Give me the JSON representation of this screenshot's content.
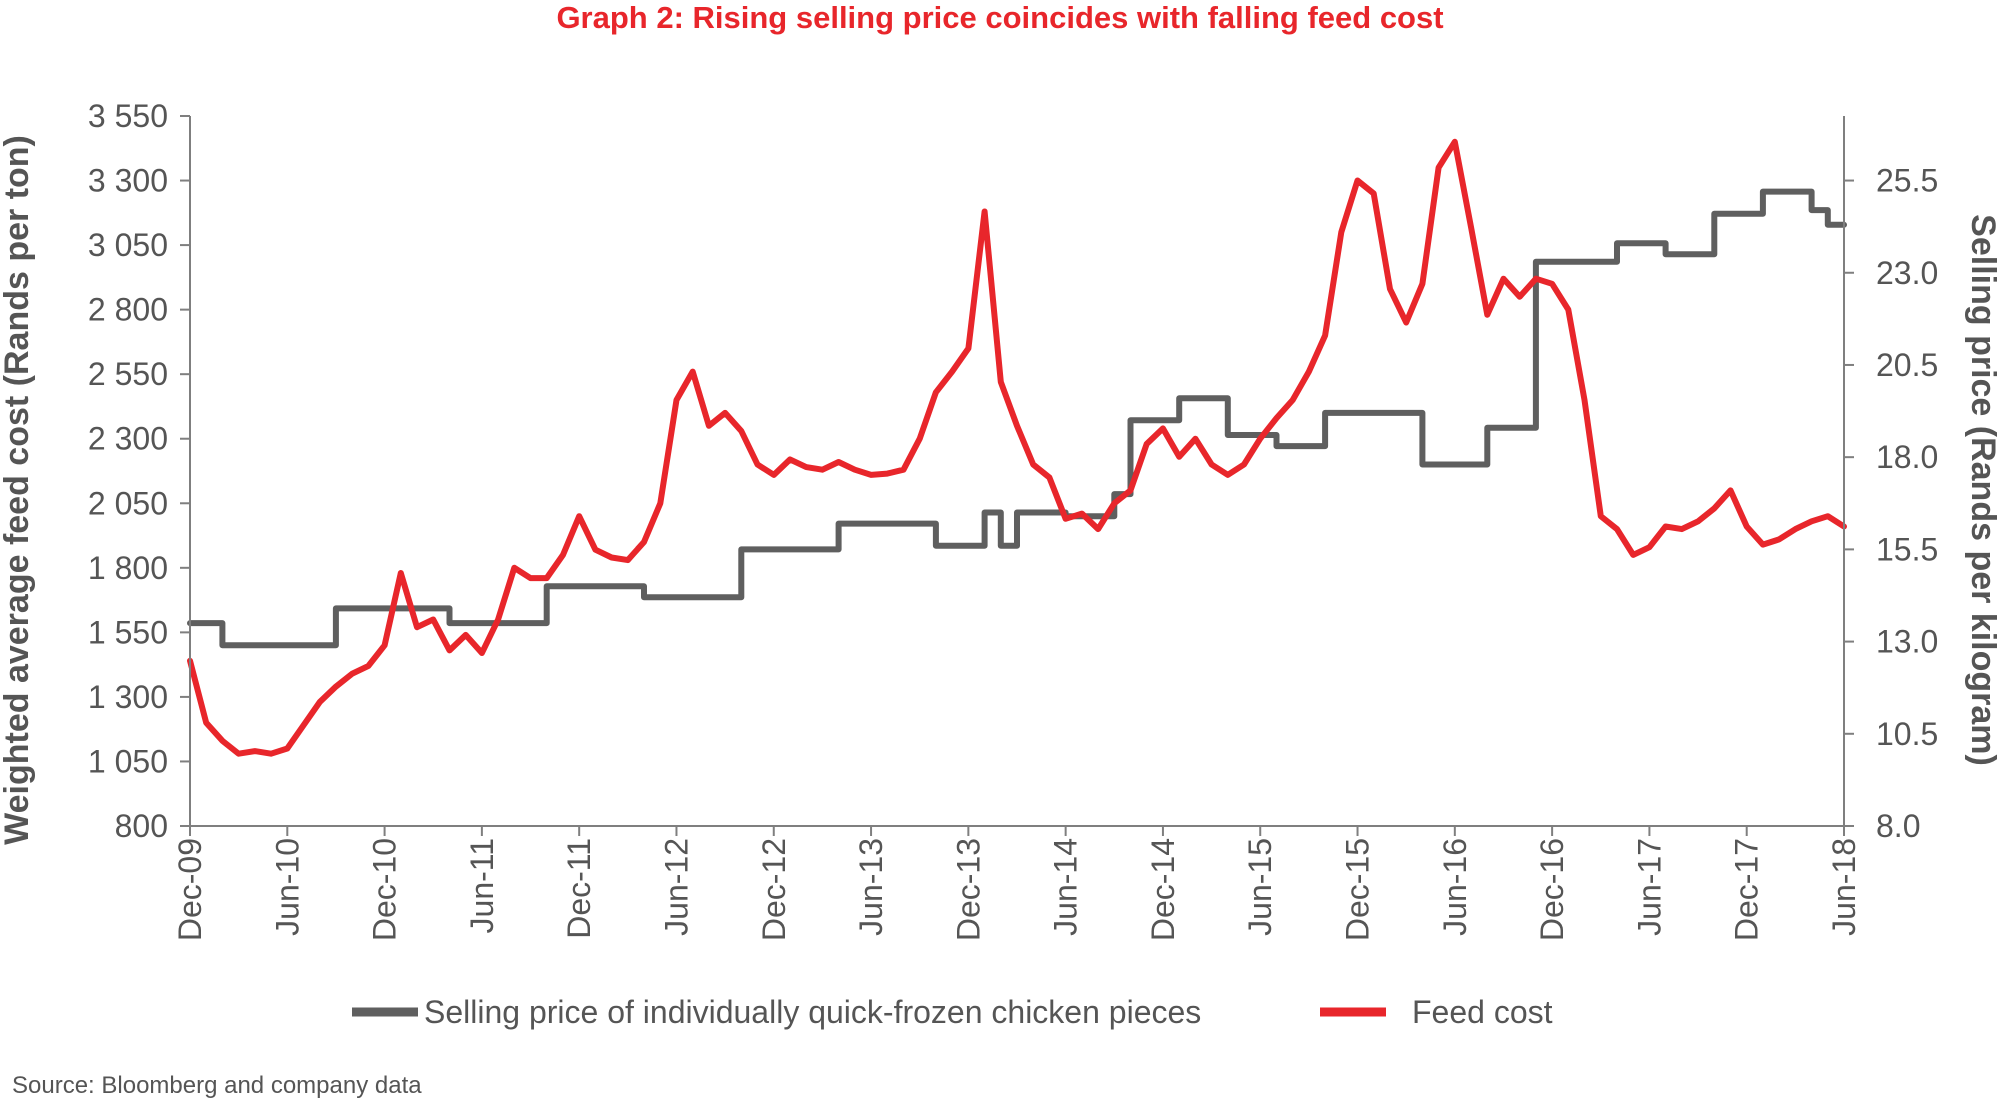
{
  "chart_data": {
    "type": "line",
    "title": "Graph 2: Rising selling price coincides with falling feed cost",
    "y_left_label": "Weighted average feed cost (Rands per ton)",
    "y_right_label": "Selling price (Rands per kilogram)",
    "y_left_range": [
      800,
      3550
    ],
    "y_right_range": [
      8.0,
      27.25
    ],
    "y_left_ticks": [
      "800",
      "1 050",
      "1 300",
      "1 550",
      "1 800",
      "2 050",
      "2 300",
      "2 550",
      "2 800",
      "3 050",
      "3 300",
      "3 550"
    ],
    "y_right_ticks": [
      "8.0",
      "10.5",
      "13.0",
      "15.5",
      "18.0",
      "20.5",
      "23.0",
      "25.5"
    ],
    "x_range": [
      "2009-12",
      "2018-06"
    ],
    "x_ticks": [
      "Dec-09",
      "Jun-10",
      "Dec-10",
      "Jun-11",
      "Dec-11",
      "Jun-12",
      "Dec-12",
      "Jun-13",
      "Dec-13",
      "Jun-14",
      "Dec-14",
      "Jun-15",
      "Dec-15",
      "Jun-16",
      "Dec-16",
      "Jun-17",
      "Dec-17",
      "Jun-18"
    ],
    "grid": false,
    "legend_position": "bottom",
    "series": [
      {
        "name": "Selling price of individually quick-frozen chicken pieces",
        "axis": "right",
        "color": "#5f5f5f",
        "step": true,
        "points": [
          [
            "2009-12",
            13.5
          ],
          [
            "2010-02",
            13.5
          ],
          [
            "2010-02",
            12.9
          ],
          [
            "2010-09",
            12.9
          ],
          [
            "2010-09",
            13.9
          ],
          [
            "2011-04",
            13.9
          ],
          [
            "2011-04",
            13.5
          ],
          [
            "2011-10",
            13.5
          ],
          [
            "2011-10",
            14.5
          ],
          [
            "2012-04",
            14.5
          ],
          [
            "2012-04",
            14.2
          ],
          [
            "2012-10",
            14.2
          ],
          [
            "2012-10",
            15.5
          ],
          [
            "2013-04",
            15.5
          ],
          [
            "2013-04",
            16.2
          ],
          [
            "2013-10",
            16.2
          ],
          [
            "2013-10",
            15.6
          ],
          [
            "2014-01",
            15.6
          ],
          [
            "2014-01",
            16.5
          ],
          [
            "2014-02",
            16.5
          ],
          [
            "2014-02",
            15.6
          ],
          [
            "2014-03",
            15.6
          ],
          [
            "2014-03",
            16.5
          ],
          [
            "2014-06",
            16.5
          ],
          [
            "2014-06",
            16.4
          ],
          [
            "2014-09",
            16.4
          ],
          [
            "2014-09",
            17.0
          ],
          [
            "2014-10",
            17.0
          ],
          [
            "2014-10",
            19.0
          ],
          [
            "2015-01",
            19.0
          ],
          [
            "2015-01",
            19.6
          ],
          [
            "2015-04",
            19.6
          ],
          [
            "2015-04",
            18.6
          ],
          [
            "2015-07",
            18.6
          ],
          [
            "2015-07",
            18.3
          ],
          [
            "2015-10",
            18.3
          ],
          [
            "2015-10",
            19.2
          ],
          [
            "2016-04",
            19.2
          ],
          [
            "2016-04",
            17.8
          ],
          [
            "2016-08",
            17.8
          ],
          [
            "2016-08",
            18.8
          ],
          [
            "2016-11",
            18.8
          ],
          [
            "2016-11",
            23.3
          ],
          [
            "2017-04",
            23.3
          ],
          [
            "2017-04",
            23.8
          ],
          [
            "2017-07",
            23.8
          ],
          [
            "2017-07",
            23.5
          ],
          [
            "2017-10",
            23.5
          ],
          [
            "2017-10",
            24.6
          ],
          [
            "2018-01",
            24.6
          ],
          [
            "2018-01",
            25.2
          ],
          [
            "2018-04",
            25.2
          ],
          [
            "2018-04",
            24.7
          ],
          [
            "2018-05",
            24.7
          ],
          [
            "2018-05",
            24.3
          ],
          [
            "2018-06",
            24.3
          ]
        ]
      },
      {
        "name": "Feed cost",
        "axis": "left",
        "color": "#e8262b",
        "step": false,
        "points": [
          [
            "2009-12",
            1440
          ],
          [
            "2010-01",
            1200
          ],
          [
            "2010-02",
            1130
          ],
          [
            "2010-03",
            1080
          ],
          [
            "2010-04",
            1090
          ],
          [
            "2010-05",
            1080
          ],
          [
            "2010-06",
            1100
          ],
          [
            "2010-07",
            1190
          ],
          [
            "2010-08",
            1280
          ],
          [
            "2010-09",
            1340
          ],
          [
            "2010-10",
            1390
          ],
          [
            "2010-11",
            1420
          ],
          [
            "2010-12",
            1500
          ],
          [
            "2011-01",
            1780
          ],
          [
            "2011-02",
            1570
          ],
          [
            "2011-03",
            1600
          ],
          [
            "2011-04",
            1480
          ],
          [
            "2011-05",
            1540
          ],
          [
            "2011-06",
            1470
          ],
          [
            "2011-07",
            1600
          ],
          [
            "2011-08",
            1800
          ],
          [
            "2011-09",
            1760
          ],
          [
            "2011-10",
            1760
          ],
          [
            "2011-11",
            1850
          ],
          [
            "2011-12",
            2000
          ],
          [
            "2012-01",
            1870
          ],
          [
            "2012-02",
            1840
          ],
          [
            "2012-03",
            1830
          ],
          [
            "2012-04",
            1900
          ],
          [
            "2012-05",
            2050
          ],
          [
            "2012-06",
            2450
          ],
          [
            "2012-07",
            2560
          ],
          [
            "2012-08",
            2350
          ],
          [
            "2012-09",
            2400
          ],
          [
            "2012-10",
            2330
          ],
          [
            "2012-11",
            2200
          ],
          [
            "2012-12",
            2160
          ],
          [
            "2013-01",
            2220
          ],
          [
            "2013-02",
            2190
          ],
          [
            "2013-03",
            2180
          ],
          [
            "2013-04",
            2210
          ],
          [
            "2013-05",
            2180
          ],
          [
            "2013-06",
            2160
          ],
          [
            "2013-07",
            2165
          ],
          [
            "2013-08",
            2180
          ],
          [
            "2013-09",
            2300
          ],
          [
            "2013-10",
            2480
          ],
          [
            "2013-11",
            2560
          ],
          [
            "2013-12",
            2650
          ],
          [
            "2014-01",
            3180
          ],
          [
            "2014-02",
            2520
          ],
          [
            "2014-03",
            2350
          ],
          [
            "2014-04",
            2200
          ],
          [
            "2014-05",
            2150
          ],
          [
            "2014-06",
            1990
          ],
          [
            "2014-07",
            2010
          ],
          [
            "2014-08",
            1950
          ],
          [
            "2014-09",
            2050
          ],
          [
            "2014-10",
            2100
          ],
          [
            "2014-11",
            2280
          ],
          [
            "2014-12",
            2340
          ],
          [
            "2015-01",
            2230
          ],
          [
            "2015-02",
            2300
          ],
          [
            "2015-03",
            2200
          ],
          [
            "2015-04",
            2160
          ],
          [
            "2015-05",
            2200
          ],
          [
            "2015-06",
            2300
          ],
          [
            "2015-07",
            2380
          ],
          [
            "2015-08",
            2450
          ],
          [
            "2015-09",
            2560
          ],
          [
            "2015-10",
            2700
          ],
          [
            "2015-11",
            3100
          ],
          [
            "2015-12",
            3300
          ],
          [
            "2016-01",
            3250
          ],
          [
            "2016-02",
            2880
          ],
          [
            "2016-03",
            2750
          ],
          [
            "2016-04",
            2900
          ],
          [
            "2016-05",
            3350
          ],
          [
            "2016-06",
            3450
          ],
          [
            "2016-07",
            3120
          ],
          [
            "2016-08",
            2780
          ],
          [
            "2016-09",
            2920
          ],
          [
            "2016-10",
            2850
          ],
          [
            "2016-11",
            2920
          ],
          [
            "2016-12",
            2900
          ],
          [
            "2017-01",
            2800
          ],
          [
            "2017-02",
            2450
          ],
          [
            "2017-03",
            2000
          ],
          [
            "2017-04",
            1950
          ],
          [
            "2017-05",
            1850
          ],
          [
            "2017-06",
            1880
          ],
          [
            "2017-07",
            1960
          ],
          [
            "2017-08",
            1950
          ],
          [
            "2017-09",
            1980
          ],
          [
            "2017-10",
            2030
          ],
          [
            "2017-11",
            2100
          ],
          [
            "2017-12",
            1960
          ],
          [
            "2018-01",
            1890
          ],
          [
            "2018-02",
            1910
          ],
          [
            "2018-03",
            1950
          ],
          [
            "2018-04",
            1980
          ],
          [
            "2018-05",
            2000
          ],
          [
            "2018-06",
            1960
          ]
        ]
      }
    ]
  },
  "source_note": "Source: Bloomberg and company data"
}
